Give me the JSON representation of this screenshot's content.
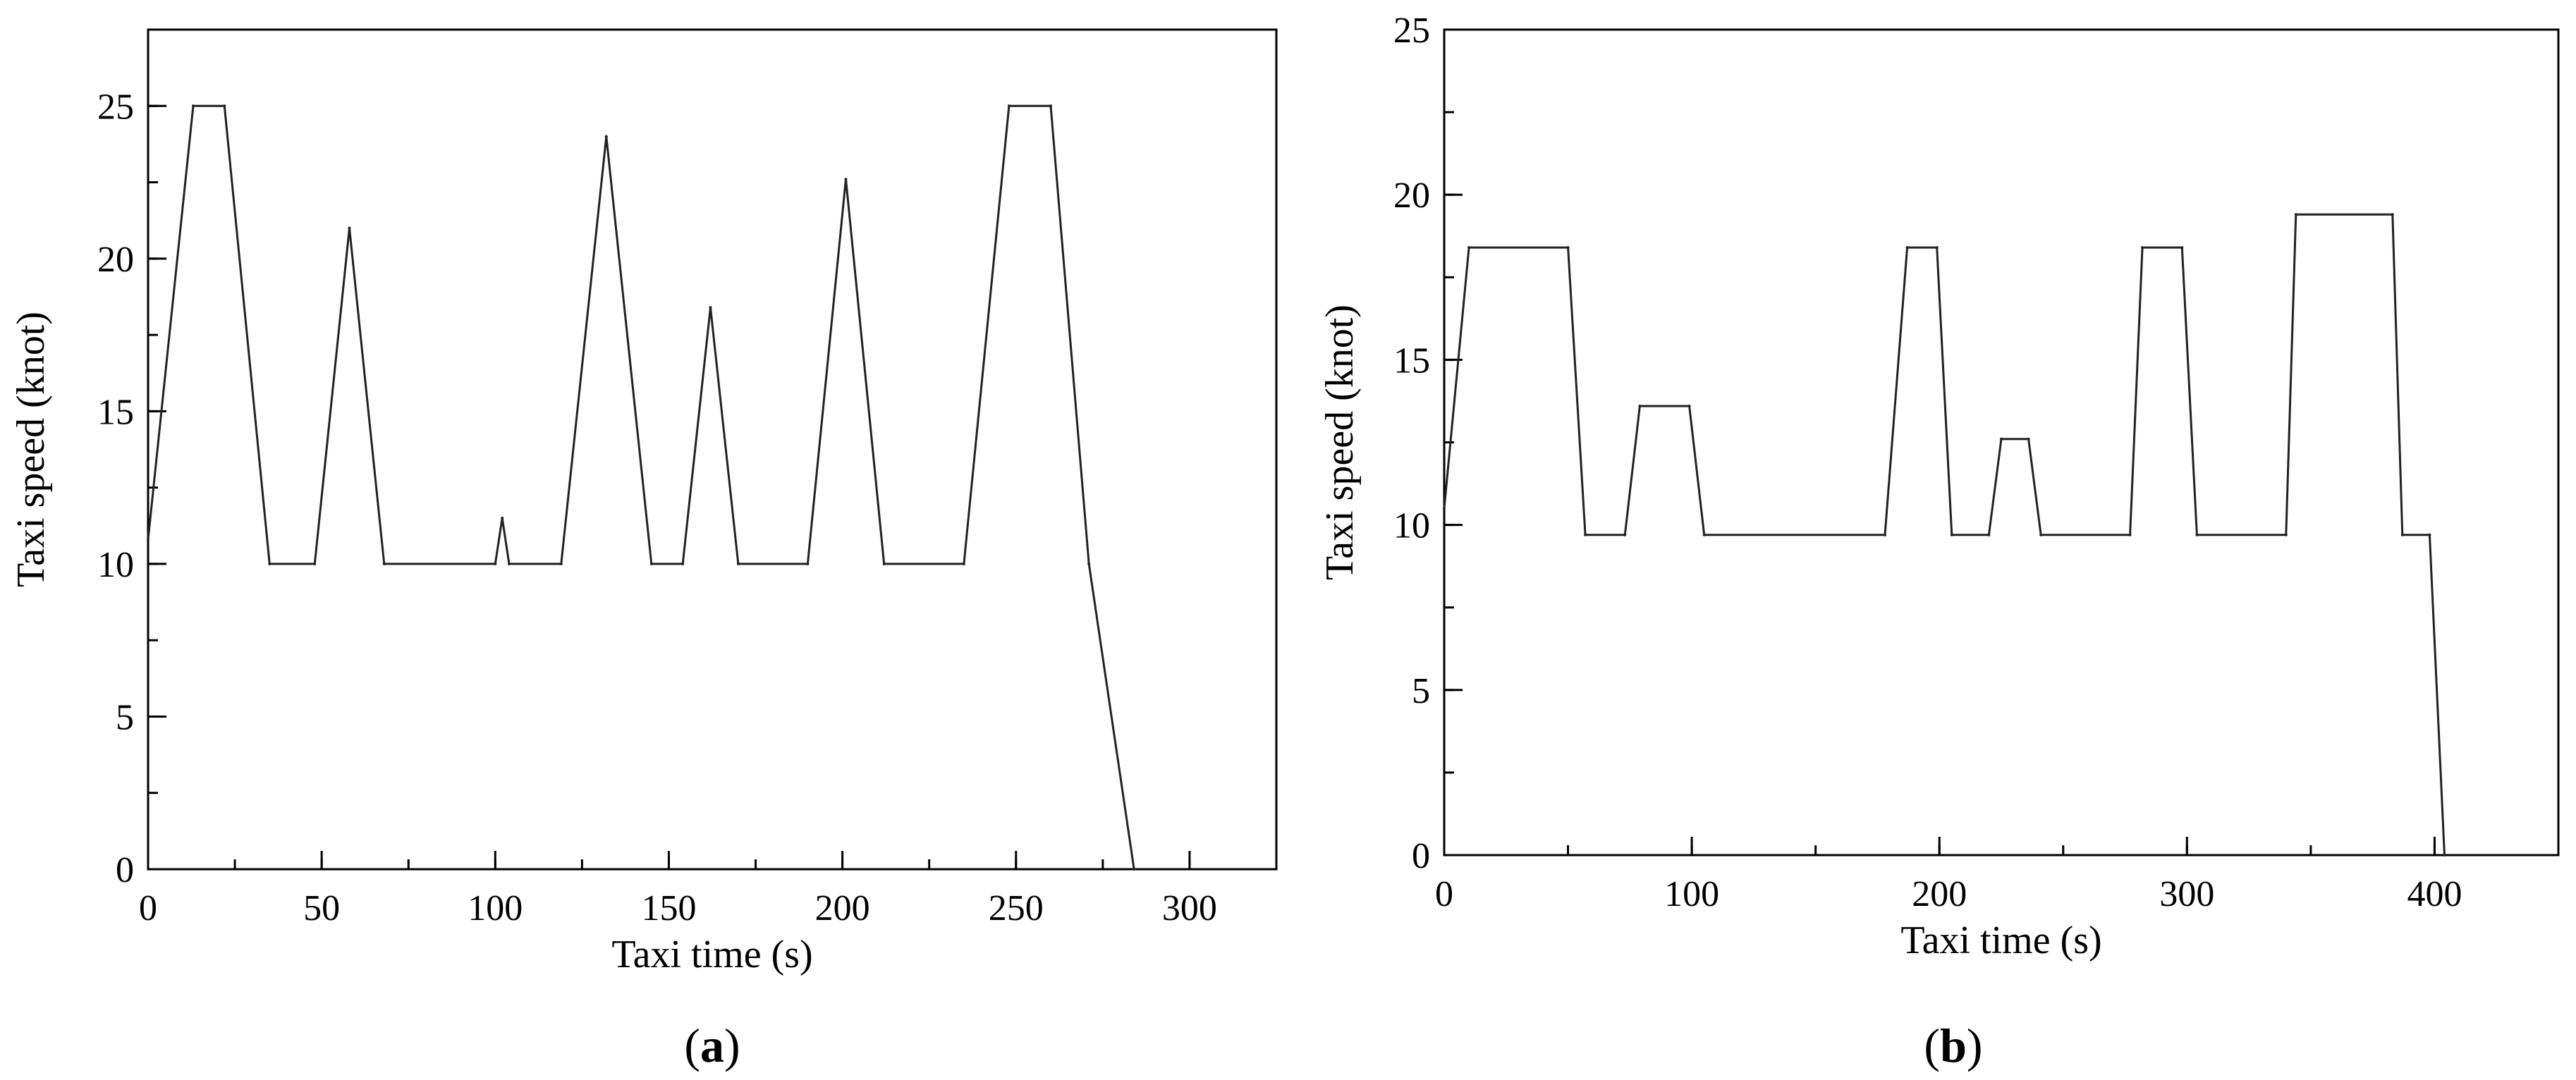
{
  "chart_data": [
    {
      "type": "line",
      "xlabel": "Taxi time (s)",
      "ylabel": "Taxi speed (knot)",
      "xlim": [
        0,
        325
      ],
      "ylim": [
        0,
        27.5
      ],
      "x_ticks": [
        0,
        50,
        100,
        150,
        200,
        250,
        300
      ],
      "y_ticks": [
        0,
        5,
        10,
        15,
        20,
        25
      ],
      "x_tick_labels": [
        "0",
        "50",
        "100",
        "150",
        "200",
        "250",
        "300"
      ],
      "y_tick_labels": [
        "0",
        "5",
        "10",
        "15",
        "20",
        "25"
      ],
      "caption_open": "(",
      "caption_letter": "a",
      "caption_close": ")",
      "grid": false,
      "line_color": "#222222",
      "x": [
        0,
        13,
        22,
        35,
        48,
        58,
        68,
        100,
        102,
        104,
        119,
        132,
        145,
        154,
        162,
        170,
        190,
        201,
        212,
        235,
        248,
        260,
        271,
        284
      ],
      "y": [
        10.8,
        25,
        25,
        10,
        10,
        21,
        10,
        10,
        11.5,
        10,
        10,
        24,
        10,
        10,
        18.4,
        10,
        10,
        22.6,
        10,
        10,
        25,
        25,
        10,
        0
      ]
    },
    {
      "type": "line",
      "xlabel": "Taxi time (s)",
      "ylabel": "Taxi speed (knot)",
      "xlim": [
        0,
        450
      ],
      "ylim": [
        0,
        25
      ],
      "x_ticks": [
        0,
        100,
        200,
        300,
        400
      ],
      "y_ticks": [
        0,
        5,
        10,
        15,
        20,
        25
      ],
      "x_tick_labels": [
        "0",
        "100",
        "200",
        "300",
        "400"
      ],
      "y_tick_labels": [
        "0",
        "5",
        "10",
        "15",
        "20",
        "25"
      ],
      "caption_open": "(",
      "caption_letter": "b",
      "caption_close": ")",
      "grid": false,
      "line_color": "#222222",
      "x": [
        0,
        10,
        50,
        57,
        73,
        79,
        99,
        105,
        178,
        187,
        199,
        205,
        220,
        225,
        236,
        241,
        277,
        282,
        298,
        304,
        340,
        344,
        383,
        387,
        398,
        404
      ],
      "y": [
        10.5,
        18.4,
        18.4,
        9.7,
        9.7,
        13.6,
        13.6,
        9.7,
        9.7,
        18.4,
        18.4,
        9.7,
        9.7,
        12.6,
        12.6,
        9.7,
        9.7,
        18.4,
        18.4,
        9.7,
        9.7,
        19.4,
        19.4,
        9.7,
        9.7,
        0
      ]
    }
  ]
}
